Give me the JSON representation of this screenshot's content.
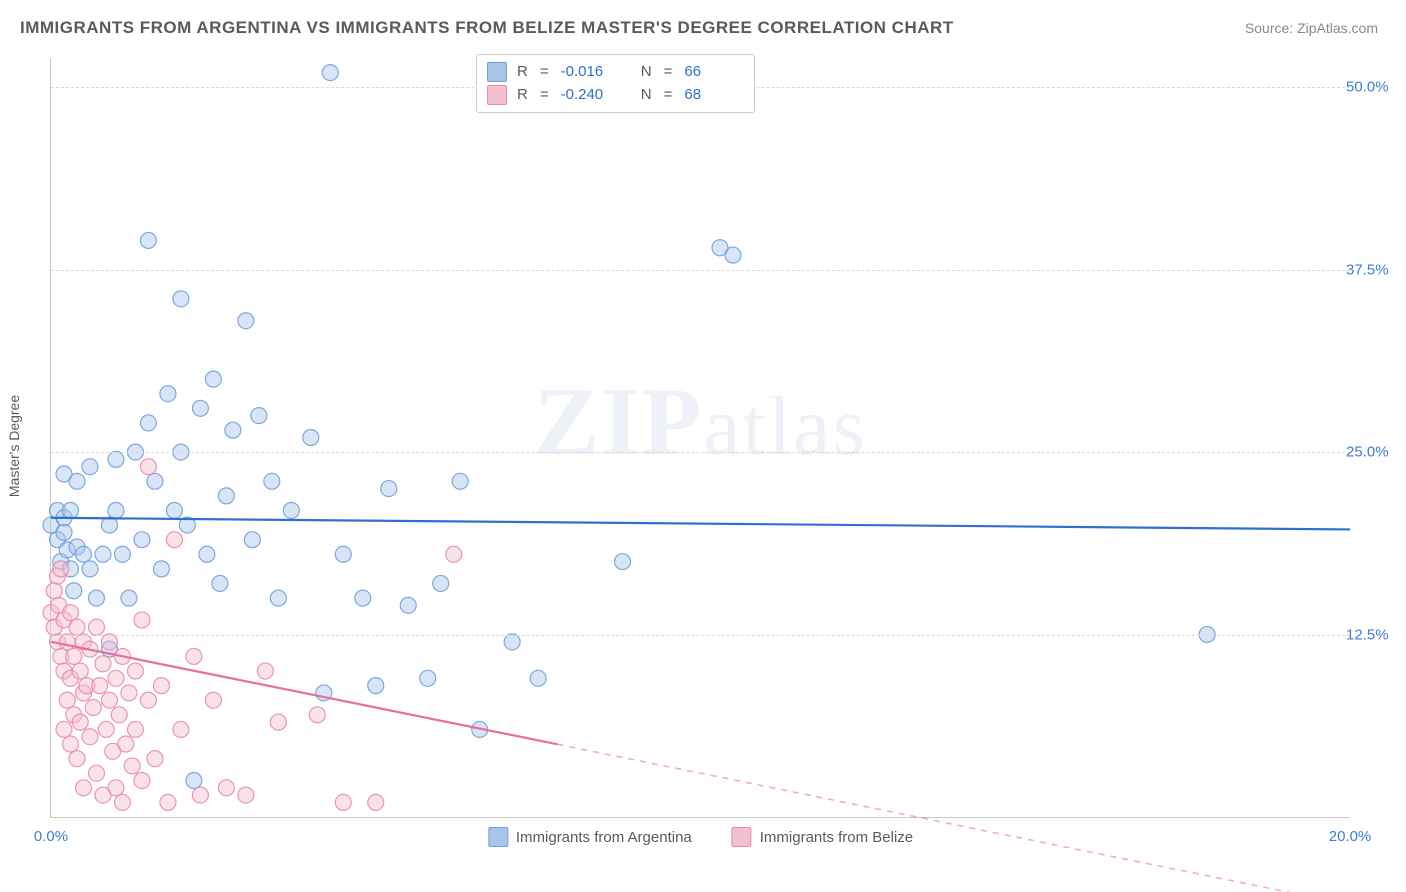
{
  "title": "IMMIGRANTS FROM ARGENTINA VS IMMIGRANTS FROM BELIZE MASTER'S DEGREE CORRELATION CHART",
  "source_label": "Source:",
  "source_value": "ZipAtlas.com",
  "watermark": "ZIPatlas",
  "yaxis_title": "Master's Degree",
  "chart": {
    "type": "scatter",
    "background_color": "#ffffff",
    "grid_color": "#d8d8d8",
    "axis_color": "#c9c9c9",
    "tick_label_color": "#3b7dd8",
    "xlim": [
      0,
      20
    ],
    "ylim": [
      0,
      52
    ],
    "xticks": [
      {
        "v": 0.0,
        "label": "0.0%"
      },
      {
        "v": 20.0,
        "label": "20.0%"
      }
    ],
    "yticks": [
      {
        "v": 12.5,
        "label": "12.5%"
      },
      {
        "v": 25.0,
        "label": "25.0%"
      },
      {
        "v": 37.5,
        "label": "37.5%"
      },
      {
        "v": 50.0,
        "label": "50.0%"
      }
    ],
    "marker_radius": 8,
    "marker_opacity": 0.45,
    "marker_stroke_opacity": 0.9,
    "line_width": 2.2,
    "tick_fontsize": 15
  },
  "series": [
    {
      "key": "argentina",
      "label": "Immigrants from Argentina",
      "color_fill": "#a8c6ea",
      "color_stroke": "#6fa0da",
      "line_color": "#2f6fd0",
      "R": "-0.016",
      "N": "66",
      "trend_y_at_xmin": 20.5,
      "trend_y_at_xmax": 19.7,
      "trend_solid_to_x": 20.0,
      "points": [
        [
          0.0,
          20.0
        ],
        [
          0.1,
          19.0
        ],
        [
          0.1,
          21.0
        ],
        [
          0.15,
          17.5
        ],
        [
          0.2,
          19.5
        ],
        [
          0.2,
          20.5
        ],
        [
          0.25,
          18.3
        ],
        [
          0.2,
          23.5
        ],
        [
          0.3,
          21.0
        ],
        [
          0.3,
          17.0
        ],
        [
          0.35,
          15.5
        ],
        [
          0.4,
          18.5
        ],
        [
          0.4,
          23.0
        ],
        [
          0.5,
          18.0
        ],
        [
          0.6,
          24.0
        ],
        [
          0.6,
          17.0
        ],
        [
          0.7,
          15.0
        ],
        [
          0.8,
          18.0
        ],
        [
          0.9,
          20.0
        ],
        [
          1.0,
          24.5
        ],
        [
          1.0,
          21.0
        ],
        [
          1.1,
          18.0
        ],
        [
          1.2,
          15.0
        ],
        [
          1.3,
          25.0
        ],
        [
          1.4,
          19.0
        ],
        [
          1.5,
          27.0
        ],
        [
          1.5,
          39.5
        ],
        [
          1.6,
          23.0
        ],
        [
          1.7,
          17.0
        ],
        [
          1.8,
          29.0
        ],
        [
          1.9,
          21.0
        ],
        [
          2.0,
          35.5
        ],
        [
          2.0,
          25.0
        ],
        [
          2.1,
          20.0
        ],
        [
          2.2,
          2.5
        ],
        [
          2.3,
          28.0
        ],
        [
          2.4,
          18.0
        ],
        [
          2.5,
          30.0
        ],
        [
          2.6,
          16.0
        ],
        [
          2.7,
          22.0
        ],
        [
          2.8,
          26.5
        ],
        [
          3.0,
          34.0
        ],
        [
          3.1,
          19.0
        ],
        [
          3.2,
          27.5
        ],
        [
          3.4,
          23.0
        ],
        [
          3.5,
          15.0
        ],
        [
          3.7,
          21.0
        ],
        [
          4.0,
          26.0
        ],
        [
          4.2,
          8.5
        ],
        [
          4.3,
          51.0
        ],
        [
          4.5,
          18.0
        ],
        [
          4.8,
          15.0
        ],
        [
          5.0,
          9.0
        ],
        [
          5.2,
          22.5
        ],
        [
          5.5,
          14.5
        ],
        [
          5.8,
          9.5
        ],
        [
          6.0,
          16.0
        ],
        [
          6.3,
          23.0
        ],
        [
          6.6,
          6.0
        ],
        [
          7.1,
          12.0
        ],
        [
          7.5,
          9.5
        ],
        [
          8.8,
          17.5
        ],
        [
          10.3,
          39.0
        ],
        [
          10.5,
          38.5
        ],
        [
          17.8,
          12.5
        ],
        [
          0.9,
          11.5
        ]
      ]
    },
    {
      "key": "belize",
      "label": "Immigrants from Belize",
      "color_fill": "#f4bfcf",
      "color_stroke": "#e98bab",
      "line_color": "#e76f9a",
      "R": "-0.240",
      "N": "68",
      "trend_y_at_xmin": 12.0,
      "trend_y_at_xmax": -6.0,
      "trend_solid_to_x": 7.8,
      "points": [
        [
          0.0,
          14.0
        ],
        [
          0.05,
          15.5
        ],
        [
          0.05,
          13.0
        ],
        [
          0.1,
          12.0
        ],
        [
          0.1,
          16.5
        ],
        [
          0.12,
          14.5
        ],
        [
          0.15,
          11.0
        ],
        [
          0.15,
          17.0
        ],
        [
          0.2,
          10.0
        ],
        [
          0.2,
          13.5
        ],
        [
          0.2,
          6.0
        ],
        [
          0.25,
          12.0
        ],
        [
          0.25,
          8.0
        ],
        [
          0.3,
          9.5
        ],
        [
          0.3,
          14.0
        ],
        [
          0.3,
          5.0
        ],
        [
          0.35,
          11.0
        ],
        [
          0.35,
          7.0
        ],
        [
          0.4,
          13.0
        ],
        [
          0.4,
          4.0
        ],
        [
          0.45,
          10.0
        ],
        [
          0.45,
          6.5
        ],
        [
          0.5,
          8.5
        ],
        [
          0.5,
          12.0
        ],
        [
          0.5,
          2.0
        ],
        [
          0.55,
          9.0
        ],
        [
          0.6,
          11.5
        ],
        [
          0.6,
          5.5
        ],
        [
          0.65,
          7.5
        ],
        [
          0.7,
          13.0
        ],
        [
          0.7,
          3.0
        ],
        [
          0.75,
          9.0
        ],
        [
          0.8,
          10.5
        ],
        [
          0.8,
          1.5
        ],
        [
          0.85,
          6.0
        ],
        [
          0.9,
          8.0
        ],
        [
          0.9,
          12.0
        ],
        [
          0.95,
          4.5
        ],
        [
          1.0,
          9.5
        ],
        [
          1.0,
          2.0
        ],
        [
          1.05,
          7.0
        ],
        [
          1.1,
          11.0
        ],
        [
          1.1,
          1.0
        ],
        [
          1.15,
          5.0
        ],
        [
          1.2,
          8.5
        ],
        [
          1.25,
          3.5
        ],
        [
          1.3,
          10.0
        ],
        [
          1.3,
          6.0
        ],
        [
          1.4,
          13.5
        ],
        [
          1.4,
          2.5
        ],
        [
          1.5,
          8.0
        ],
        [
          1.5,
          24.0
        ],
        [
          1.6,
          4.0
        ],
        [
          1.7,
          9.0
        ],
        [
          1.8,
          1.0
        ],
        [
          1.9,
          19.0
        ],
        [
          2.0,
          6.0
        ],
        [
          2.2,
          11.0
        ],
        [
          2.3,
          1.5
        ],
        [
          2.5,
          8.0
        ],
        [
          2.7,
          2.0
        ],
        [
          3.0,
          1.5
        ],
        [
          3.3,
          10.0
        ],
        [
          3.5,
          6.5
        ],
        [
          4.1,
          7.0
        ],
        [
          4.5,
          1.0
        ],
        [
          5.0,
          1.0
        ],
        [
          6.2,
          18.0
        ]
      ]
    }
  ],
  "legend_top": {
    "R_label": "R",
    "N_label": "N",
    "eq": "="
  }
}
